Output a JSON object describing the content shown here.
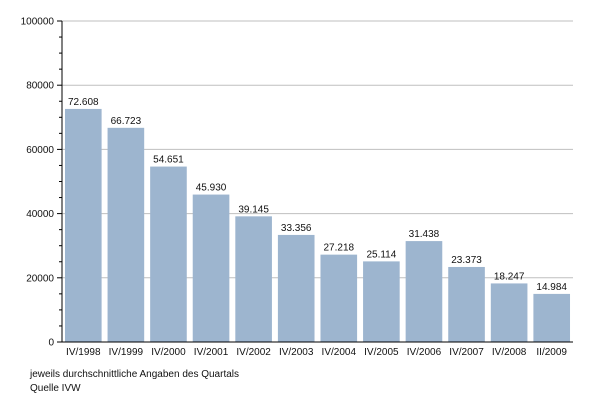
{
  "chart_data": {
    "type": "bar",
    "title": "",
    "xlabel": "",
    "ylabel": "",
    "categories": [
      "IV/1998",
      "IV/1999",
      "IV/2000",
      "IV/2001",
      "IV/2002",
      "IV/2003",
      "IV/2004",
      "IV/2005",
      "IV/2006",
      "IV/2007",
      "IV/2008",
      "II/2009"
    ],
    "values": [
      72608,
      66723,
      54651,
      45930,
      39145,
      33356,
      27218,
      25114,
      31438,
      23373,
      18247,
      14984
    ],
    "value_labels": [
      "72.608",
      "66.723",
      "54.651",
      "45.930",
      "39.145",
      "33.356",
      "27.218",
      "25.114",
      "31.438",
      "23.373",
      "18.247",
      "14.984"
    ],
    "ylim": [
      0,
      100000
    ],
    "yticks": [
      0,
      20000,
      40000,
      60000,
      80000,
      100000
    ],
    "ytick_labels": [
      "0",
      "20000",
      "40000",
      "60000",
      "80000",
      "100000"
    ],
    "grid": true,
    "legend": "none",
    "bar_color": "#9db5cf",
    "grid_color": "#bfbfbf"
  },
  "notes": {
    "line1": "jeweils durchschnittliche Angaben des Quartals",
    "line2": "Quelle IVW"
  }
}
